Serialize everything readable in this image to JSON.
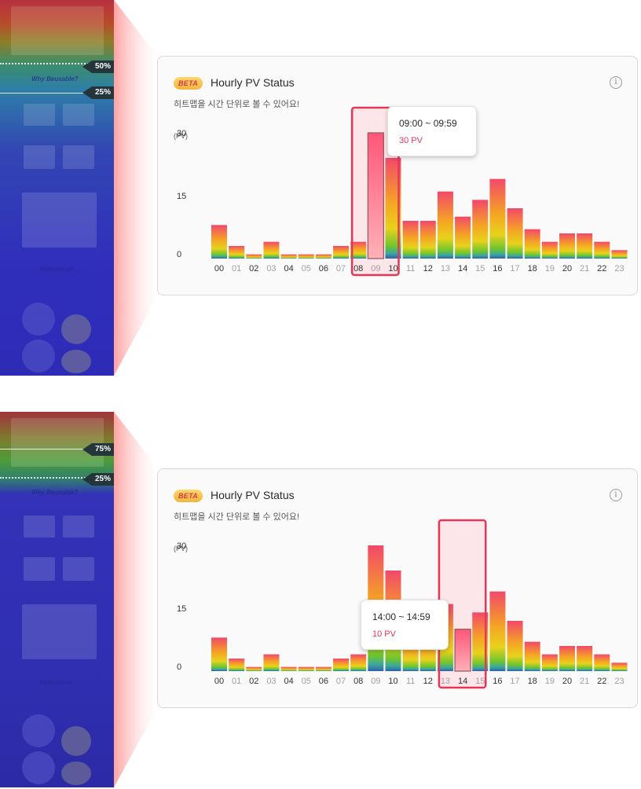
{
  "colors": {
    "accent": "#e2385a",
    "bar_top_hot": "#f2486a",
    "bar_mid": "#e8d21c",
    "bar_base": "#2f5fa8",
    "beta_badge": "#f2b43c"
  },
  "panels": [
    {
      "strip": {
        "section_heading": "Why Beusable?",
        "references_heading": "References",
        "markers": [
          {
            "label": "50%",
            "position": 0.5
          },
          {
            "label": "25%",
            "position": 0.25
          }
        ]
      },
      "card": {
        "badge": "BETA",
        "title": "Hourly PV Status",
        "subtitle": "히트맵을 시간 단위로 볼 수 있어요!",
        "info_icon": "info-icon",
        "y_unit": "(PV)",
        "tooltip": {
          "range": "09:00 ~ 09:59",
          "value": "30 PV"
        }
      },
      "chart_data": {
        "type": "bar",
        "title": "Hourly PV Status",
        "ylabel": "(PV)",
        "ylim": [
          0,
          30
        ],
        "yticks": [
          "30",
          "15",
          "0"
        ],
        "categories": [
          "00",
          "01",
          "02",
          "03",
          "04",
          "05",
          "06",
          "07",
          "08",
          "09",
          "10",
          "11",
          "12",
          "13",
          "14",
          "15",
          "16",
          "17",
          "18",
          "19",
          "20",
          "21",
          "22",
          "23"
        ],
        "values": [
          8,
          3,
          1,
          4,
          1,
          1,
          1,
          3,
          4,
          30,
          24,
          9,
          9,
          16,
          10,
          14,
          19,
          12,
          7,
          4,
          6,
          6,
          4,
          2
        ],
        "highlighted": "09",
        "grid": false,
        "legend": "none"
      }
    },
    {
      "strip": {
        "section_heading": "Why Beusable?",
        "references_heading": "References",
        "markers": [
          {
            "label": "75%",
            "position": 0.75
          },
          {
            "label": "25%",
            "position": 0.25
          }
        ]
      },
      "card": {
        "badge": "BETA",
        "title": "Hourly PV Status",
        "subtitle": "히트맵을 시간 단위로 볼 수 있어요!",
        "info_icon": "info-icon",
        "y_unit": "(PV)",
        "tooltip": {
          "range": "14:00 ~ 14:59",
          "value": "10 PV"
        }
      },
      "chart_data": {
        "type": "bar",
        "title": "Hourly PV Status",
        "ylabel": "(PV)",
        "ylim": [
          0,
          30
        ],
        "yticks": [
          "30",
          "15",
          "0"
        ],
        "categories": [
          "00",
          "01",
          "02",
          "03",
          "04",
          "05",
          "06",
          "07",
          "08",
          "09",
          "10",
          "11",
          "12",
          "13",
          "14",
          "15",
          "16",
          "17",
          "18",
          "19",
          "20",
          "21",
          "22",
          "23"
        ],
        "values": [
          8,
          3,
          1,
          4,
          1,
          1,
          1,
          3,
          4,
          30,
          24,
          9,
          9,
          16,
          10,
          14,
          19,
          12,
          7,
          4,
          6,
          6,
          4,
          2
        ],
        "highlighted": "14",
        "grid": false,
        "legend": "none"
      }
    }
  ]
}
